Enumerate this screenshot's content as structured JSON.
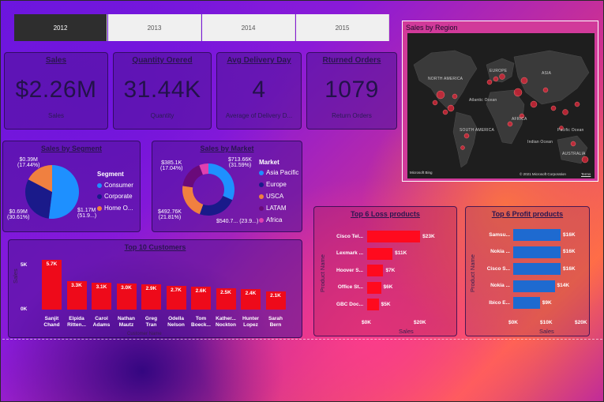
{
  "years": [
    {
      "label": "2012",
      "active": true
    },
    {
      "label": "2013",
      "active": false
    },
    {
      "label": "2014",
      "active": false
    },
    {
      "label": "2015",
      "active": false
    }
  ],
  "kpis": [
    {
      "title": "Sales",
      "value": "$2.26M",
      "sub": "Sales"
    },
    {
      "title": "Quantity Orered",
      "value": "31.44K",
      "sub": "Quantity"
    },
    {
      "title": "Avg Delivery Day",
      "value": "4",
      "sub": "Average of Delivery D..."
    },
    {
      "title": "Rturned Orders",
      "value": "1079",
      "sub": "Return Orders"
    }
  ],
  "map": {
    "title": "Sales by Region",
    "labels": [
      "NORTH AMERICA",
      "EUROPE",
      "ASIA",
      "Atlantic Ocean",
      "AFRICA",
      "SOUTH AMERICA",
      "Indian Ocean",
      "Pacific Ocean",
      "AUSTRALIA"
    ],
    "brand": "Microsoft Bing",
    "copyright": "© 2021 Microsoft Corporation",
    "terms": "Terms"
  },
  "segment": {
    "title": "Sales by Segment",
    "legend_title": "Segment",
    "legend": [
      "Consumer",
      "Corporate",
      "Home O..."
    ],
    "colors": [
      "#1e90ff",
      "#1a1a8a",
      "#f08040"
    ],
    "slice_labels": [
      [
        "$1.17M",
        "(51.9...)"
      ],
      [
        "$0.69M",
        "(30.61%)"
      ],
      [
        "$0.39M",
        "(17.44%)"
      ]
    ]
  },
  "market": {
    "title": "Sales by Market",
    "legend_title": "Market",
    "legend": [
      "Asia Pacific",
      "Europe",
      "USCA",
      "LATAM",
      "Africa"
    ],
    "colors": [
      "#1e90ff",
      "#1a1a8a",
      "#f08040",
      "#6a0a7a",
      "#e040b0"
    ],
    "slice_labels": [
      [
        "$713.66K",
        "(31.59%)"
      ],
      [
        "$540.7...",
        "(23.9...)"
      ],
      [
        "$492.76K",
        "(21.81%)"
      ],
      [
        "$385.1K",
        "(17.04%)"
      ]
    ]
  },
  "customers": {
    "title": "Top 10 Customers",
    "y_title": "Sales",
    "x_title": "Customer Name",
    "y_ticks": [
      "5K",
      "0K"
    ],
    "names": [
      [
        "Sanjit",
        "Chand"
      ],
      [
        "Elpida",
        "Ritten..."
      ],
      [
        "Carol",
        "Adams"
      ],
      [
        "Nathan",
        "Mautz"
      ],
      [
        "Greg",
        "Tran"
      ],
      [
        "Odella",
        "Nelson"
      ],
      [
        "Tom",
        "Boeck..."
      ],
      [
        "Kather...",
        "Nockton"
      ],
      [
        "Hunter",
        "Lopez"
      ],
      [
        "Sarah",
        "Bern"
      ]
    ],
    "values": [
      5.7,
      3.3,
      3.1,
      3.0,
      2.9,
      2.7,
      2.6,
      2.5,
      2.4,
      2.1
    ],
    "value_labels": [
      "5.7K",
      "3.3K",
      "3.1K",
      "3.0K",
      "2.9K",
      "2.7K",
      "2.6K",
      "2.5K",
      "2.4K",
      "2.1K"
    ],
    "color": "#ee0a1a"
  },
  "loss": {
    "title": "Top 6 Loss products",
    "y_title": "Product Name",
    "x_title": "Sales",
    "x_ticks": [
      "$0K",
      "$20K"
    ],
    "names": [
      "Cisco Tel...",
      "Lexmark ...",
      "Hoover S...",
      "Office St...",
      "GBC Doc..."
    ],
    "values": [
      23,
      11,
      7,
      6,
      5
    ],
    "value_labels": [
      "$23K",
      "$11K",
      "$7K",
      "$6K",
      "$5K"
    ],
    "color": "#ff0a1e"
  },
  "profit": {
    "title": "Top 6 Profit products",
    "y_title": "Product Name",
    "x_title": "Sales",
    "x_ticks": [
      "$0K",
      "$10K",
      "$20K"
    ],
    "names": [
      "Samsu...",
      "Nokia ...",
      "Cisco S...",
      "Nokia ...",
      "Ibico E..."
    ],
    "values": [
      16,
      16,
      16,
      14,
      9
    ],
    "value_labels": [
      "$16K",
      "$16K",
      "$16K",
      "$14K",
      "$9K"
    ],
    "color": "#1e6ad0"
  },
  "chart_data": [
    {
      "type": "pie",
      "title": "Sales by Segment",
      "categories": [
        "Consumer",
        "Corporate",
        "Home O..."
      ],
      "values": [
        1.17,
        0.69,
        0.39
      ],
      "percents": [
        51.9,
        30.61,
        17.44
      ],
      "legend": "right"
    },
    {
      "type": "pie",
      "title": "Sales by Market",
      "categories": [
        "Asia Pacific",
        "Europe",
        "USCA",
        "LATAM",
        "Africa"
      ],
      "values": [
        713.66,
        540.7,
        492.76,
        385.1,
        130
      ],
      "percents": [
        31.59,
        23.9,
        21.81,
        17.04,
        5.66
      ],
      "legend": "right"
    },
    {
      "type": "bar",
      "title": "Top 10 Customers",
      "categories": [
        "Sanjit Chand",
        "Elpida Ritten...",
        "Carol Adams",
        "Nathan Mautz",
        "Greg Tran",
        "Odella Nelson",
        "Tom Boeck...",
        "Kather... Nockton",
        "Hunter Lopez",
        "Sarah Bern"
      ],
      "values": [
        5.7,
        3.3,
        3.1,
        3.0,
        2.9,
        2.7,
        2.6,
        2.5,
        2.4,
        2.1
      ],
      "xlabel": "Customer Name",
      "ylabel": "Sales",
      "ylim": [
        0,
        6
      ]
    },
    {
      "type": "bar",
      "orientation": "horizontal",
      "title": "Top 6 Loss products",
      "categories": [
        "Cisco Tel...",
        "Lexmark ...",
        "Hoover S...",
        "Office St...",
        "GBC Doc..."
      ],
      "values": [
        23,
        11,
        7,
        6,
        5
      ],
      "xlabel": "Sales",
      "ylabel": "Product Name",
      "xlim": [
        0,
        25
      ]
    },
    {
      "type": "bar",
      "orientation": "horizontal",
      "title": "Top 6 Profit products",
      "categories": [
        "Samsu...",
        "Nokia ...",
        "Cisco S...",
        "Nokia ...",
        "Ibico E..."
      ],
      "values": [
        16,
        16,
        16,
        14,
        9
      ],
      "xlabel": "Sales",
      "ylabel": "Product Name",
      "xlim": [
        0,
        20
      ]
    }
  ]
}
